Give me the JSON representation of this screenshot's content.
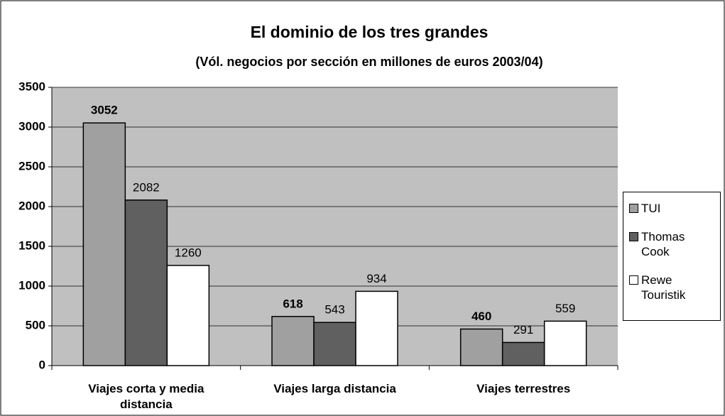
{
  "chart_data": {
    "type": "bar",
    "title": "El dominio de los tres grandes",
    "subtitle": "(Vól. negocios por sección en millones de euros 2003/04)",
    "categories": [
      "Viajes corta y media distancia",
      "Viajes larga distancia",
      "Viajes terrestres"
    ],
    "series": [
      {
        "name": "TUI",
        "color": "#a0a0a0",
        "values": [
          3052,
          618,
          460
        ],
        "bold_labels": true
      },
      {
        "name": "Thomas Cook",
        "color": "#606060",
        "values": [
          2082,
          543,
          291
        ],
        "bold_labels": false
      },
      {
        "name": "Rewe Touristik",
        "color": "#ffffff",
        "values": [
          1260,
          934,
          559
        ],
        "bold_labels": false
      }
    ],
    "ylim": [
      0,
      3500
    ],
    "yticks": [
      0,
      500,
      1000,
      1500,
      2000,
      2500,
      3000,
      3500
    ],
    "grid": true,
    "legend": "right",
    "plot_background": "#c0c0c0"
  }
}
